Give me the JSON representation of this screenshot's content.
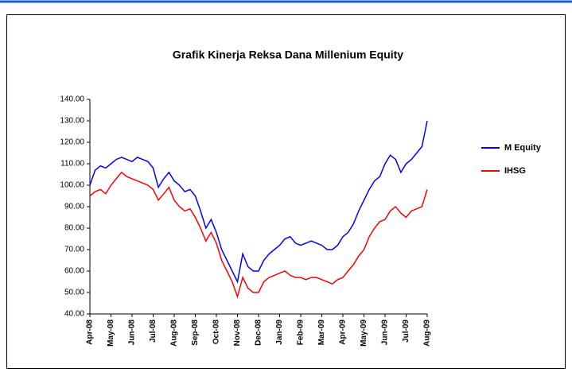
{
  "chart_data": {
    "type": "line",
    "title": "Grafik Kinerja Reksa Dana Millenium Equity",
    "categories": [
      "Apr-08",
      null,
      null,
      null,
      "May-08",
      null,
      null,
      null,
      "Jun-08",
      null,
      null,
      null,
      "Jul-08",
      null,
      null,
      null,
      "Aug-08",
      null,
      null,
      null,
      "Sep-08",
      null,
      null,
      null,
      "Oct-08",
      null,
      null,
      null,
      "Nov-08",
      null,
      null,
      null,
      "Dec-08",
      null,
      null,
      null,
      "Jan-09",
      null,
      null,
      null,
      "Feb-09",
      null,
      null,
      null,
      "Mar-09",
      null,
      null,
      null,
      "Apr-09",
      null,
      null,
      null,
      "May-09",
      null,
      null,
      null,
      "Jun-09",
      null,
      null,
      null,
      "Jul-09",
      null,
      null,
      null,
      "Aug-09"
    ],
    "series": [
      {
        "name": "M Equity",
        "color": "#0000ff",
        "values": [
          100,
          107,
          109,
          108,
          110,
          112,
          113,
          112,
          111,
          113,
          112,
          111,
          108,
          99,
          103,
          106,
          102,
          100,
          97,
          98,
          95,
          88,
          80,
          84,
          78,
          70,
          65,
          60,
          55,
          68,
          62,
          60,
          60,
          65,
          68,
          70,
          72,
          75,
          76,
          73,
          72,
          73,
          74,
          73,
          72,
          70,
          70,
          72,
          76,
          78,
          82,
          88,
          93,
          98,
          102,
          104,
          110,
          114,
          112,
          106,
          110,
          112,
          115,
          118,
          130
        ]
      },
      {
        "name": "IHSG",
        "color": "#ff0000",
        "values": [
          95,
          97,
          98,
          96,
          100,
          103,
          106,
          104,
          103,
          102,
          101,
          100,
          98,
          93,
          96,
          99,
          93,
          90,
          88,
          89,
          85,
          80,
          74,
          78,
          73,
          65,
          60,
          55,
          48,
          57,
          52,
          50,
          50,
          55,
          57,
          58,
          59,
          60,
          58,
          57,
          57,
          56,
          57,
          57,
          56,
          55,
          54,
          56,
          57,
          60,
          63,
          67,
          70,
          76,
          80,
          83,
          84,
          88,
          90,
          87,
          85,
          88,
          89,
          90,
          98
        ]
      }
    ],
    "ylim": [
      40,
      140
    ],
    "yticks": [
      {
        "value": 40,
        "label": "40.00"
      },
      {
        "value": 50,
        "label": "50.00"
      },
      {
        "value": 60,
        "label": "60.00"
      },
      {
        "value": 70,
        "label": "70.00"
      },
      {
        "value": 80,
        "label": "80.00"
      },
      {
        "value": 90,
        "label": "90.00"
      },
      {
        "value": 100,
        "label": "100.00"
      },
      {
        "value": 110,
        "label": "110.00"
      },
      {
        "value": 120,
        "label": "120.00"
      },
      {
        "value": 130,
        "label": "130.00"
      },
      {
        "value": 140,
        "label": "140.00"
      }
    ],
    "grid": false,
    "legend": "right"
  }
}
